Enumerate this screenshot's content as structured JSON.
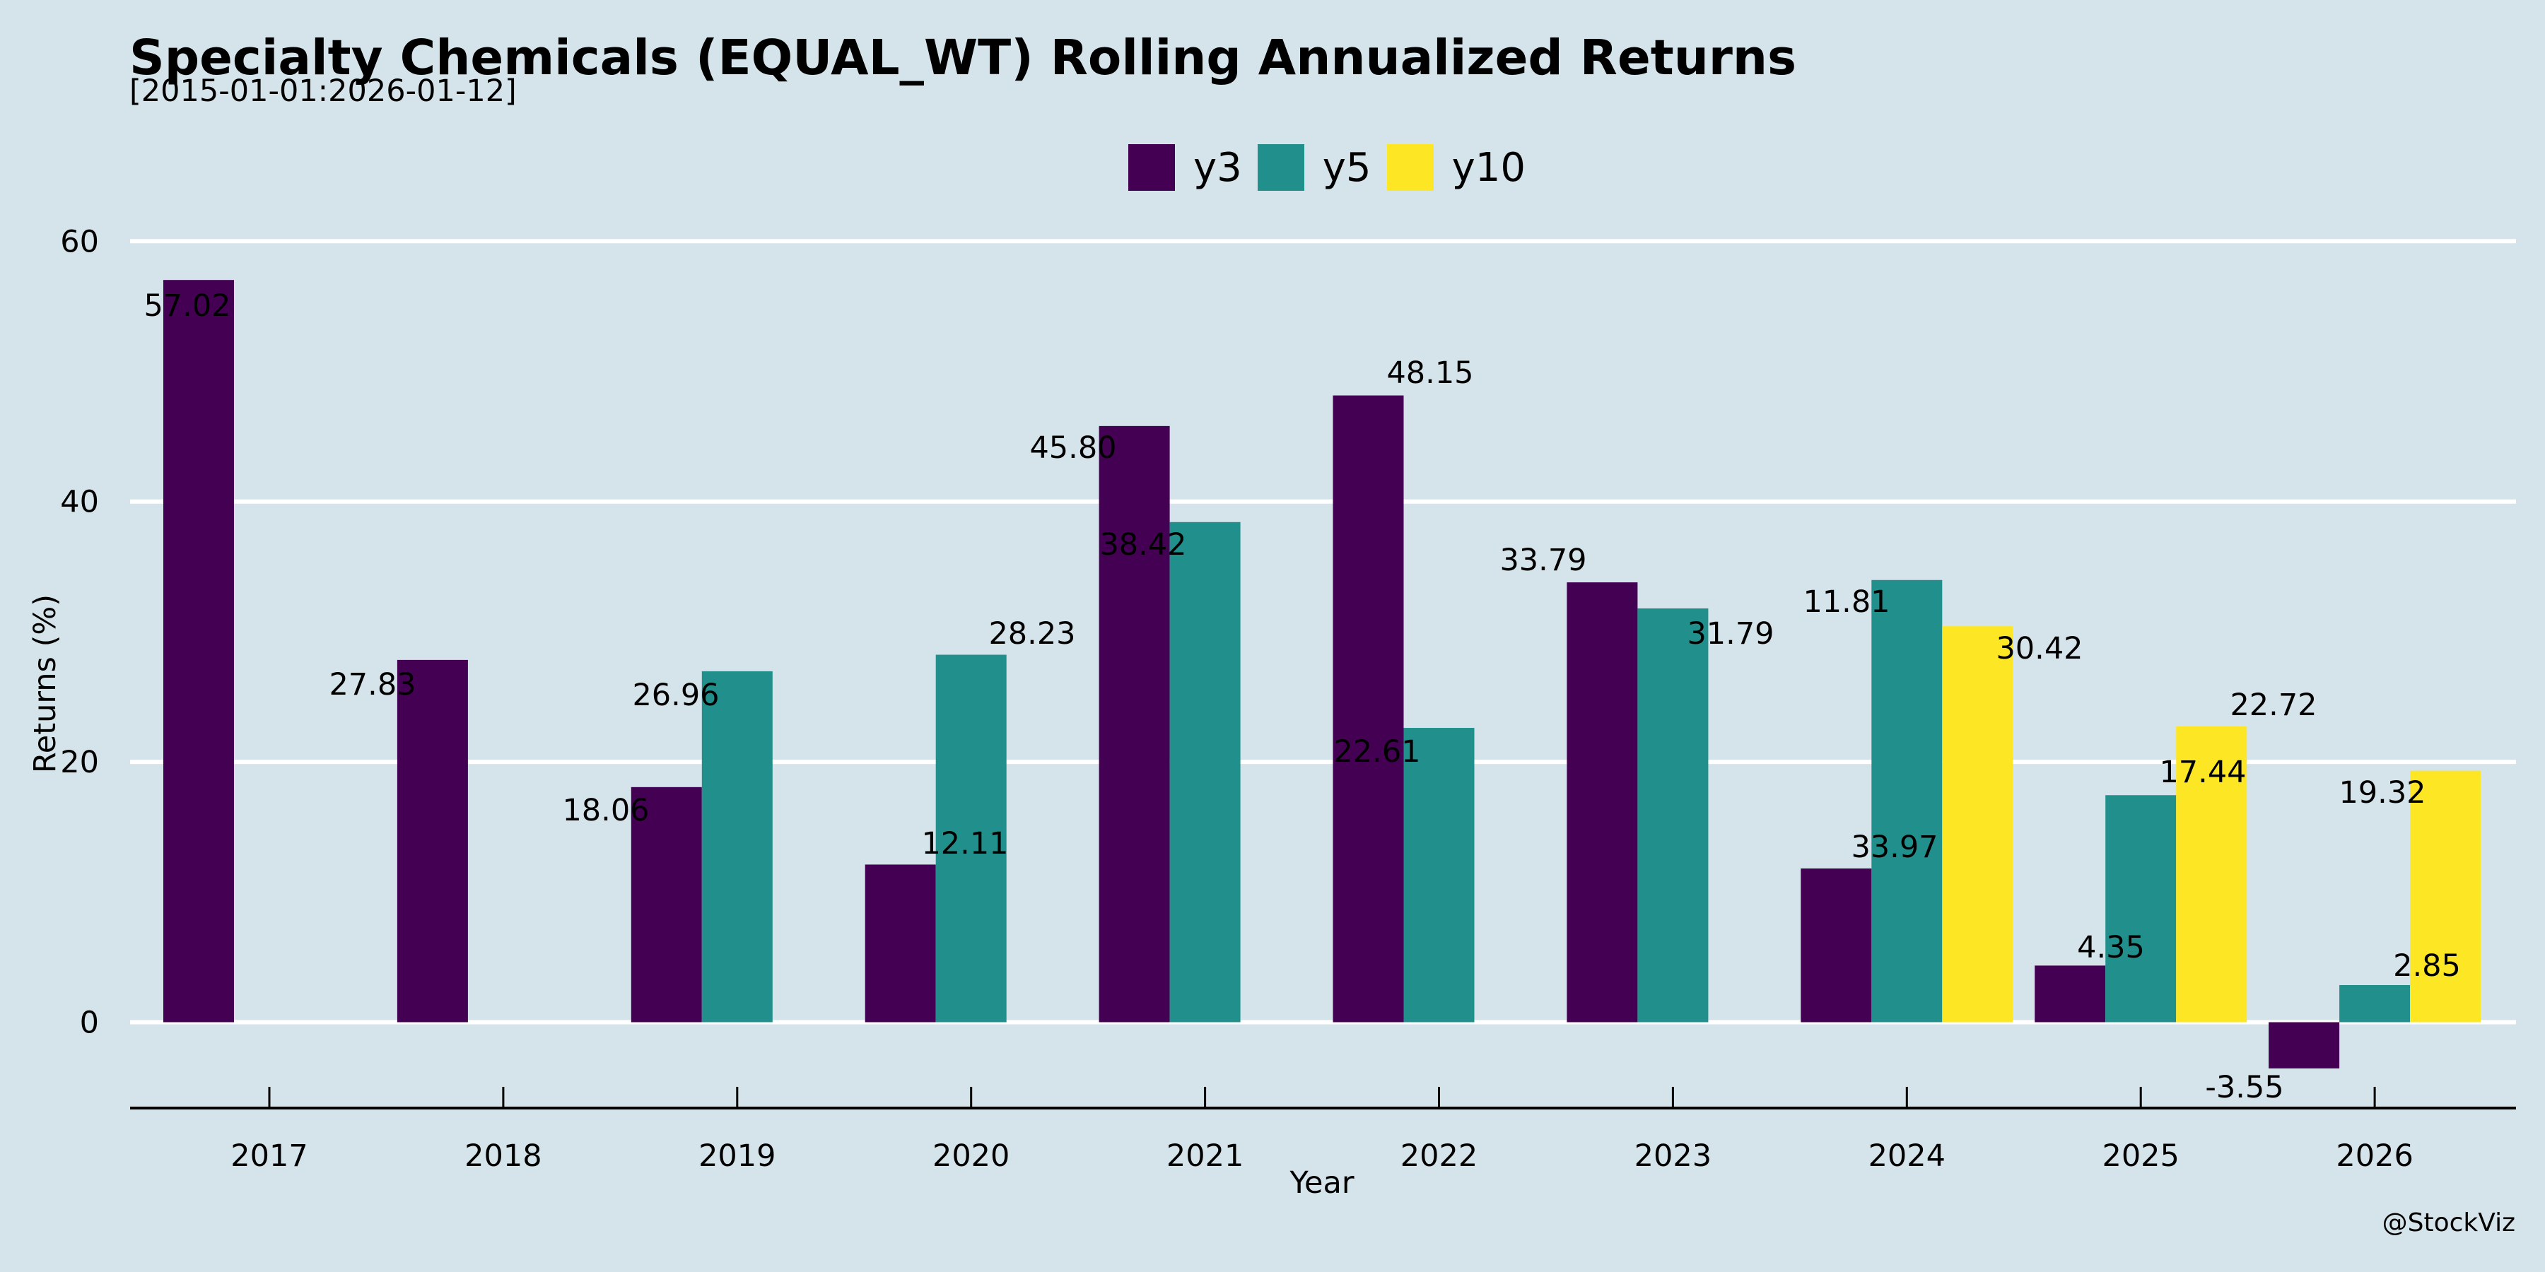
{
  "chart_data": {
    "type": "bar",
    "title": "Specialty Chemicals (EQUAL_WT) Rolling Annualized Returns",
    "subtitle": "[2015-01-01:2026-01-12]",
    "xlabel": "Year",
    "ylabel": "Returns (%)",
    "ylim": [
      -6.5,
      63
    ],
    "yticks": [
      0,
      20,
      40,
      60
    ],
    "grid": true,
    "legend_position": "top-center",
    "categories": [
      "2017",
      "2018",
      "2019",
      "2020",
      "2021",
      "2022",
      "2023",
      "2024",
      "2025",
      "2026"
    ],
    "series": [
      {
        "name": "y3",
        "color": "#440154",
        "values": [
          57.02,
          27.83,
          18.06,
          12.11,
          45.8,
          48.15,
          33.79,
          11.81,
          4.35,
          -3.55
        ]
      },
      {
        "name": "y5",
        "color": "#21908C",
        "values": [
          null,
          null,
          26.96,
          28.23,
          38.42,
          22.61,
          31.79,
          33.97,
          17.44,
          2.85
        ]
      },
      {
        "name": "y10",
        "color": "#FDE725",
        "values": [
          null,
          null,
          null,
          null,
          null,
          null,
          null,
          30.42,
          22.72,
          19.32
        ]
      }
    ],
    "watermark": "@StockViz"
  }
}
